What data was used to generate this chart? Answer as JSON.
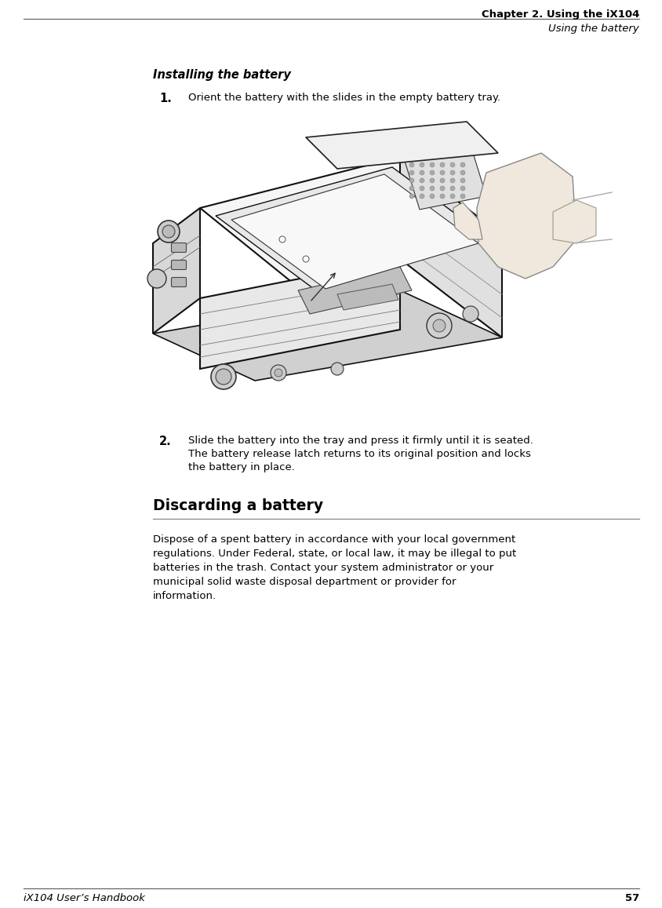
{
  "bg_color": "#ffffff",
  "line_color": "#666666",
  "header_right_text": "Chapter 2. Using the iX104",
  "header_sub_text": "Using the battery",
  "footer_left_text": "iX104 User’s Handbook",
  "footer_right_text": "57",
  "section_title": "Installing the battery",
  "item1_num": "1.",
  "item1_text": "Orient the battery with the slides in the empty battery tray.",
  "item2_num": "2.",
  "item2_text": "Slide the battery into the tray and press it firmly until it is seated.",
  "item2_sub_line1": "The battery release latch returns to its original position and locks",
  "item2_sub_line2": "the battery in place.",
  "section2_title": "Discarding a battery",
  "section2_body_lines": [
    "Dispose of a spent battery in accordance with your local government",
    "regulations. Under Federal, state, or local law, it may be illegal to put",
    "batteries in the trash. Contact your system administrator or your",
    "municipal solid waste disposal department or provider for",
    "information."
  ],
  "text_color": "#000000",
  "header_fontsize": 9.5,
  "body_fontsize": 9.5,
  "section_title_fontsize": 10.5,
  "section2_title_fontsize": 13.5,
  "footer_fontsize": 9.5,
  "num_bold_fontsize": 10.5
}
